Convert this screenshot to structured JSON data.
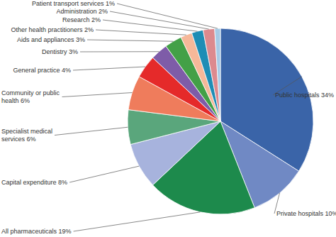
{
  "chart_data": {
    "type": "pie",
    "categories": [
      "Public hospitals",
      "Private hospitals",
      "All pharmaceuticals",
      "Capital expenditure",
      "Specialist medical services",
      "Community or public health",
      "General practice",
      "Dentistry",
      "Aids and appliances",
      "Other health practitioners",
      "Research",
      "Administration",
      "Patient transport services"
    ],
    "values": [
      34,
      10,
      19,
      8,
      6,
      6,
      4,
      3,
      3,
      2,
      2,
      2,
      1
    ],
    "value_labels": [
      "34%",
      "10%",
      "19%",
      "8%",
      "6%",
      "6%",
      "4%",
      "3%",
      "3%",
      "2%",
      "2%",
      "2%",
      "1%"
    ],
    "colors": [
      "#3a64a8",
      "#7089c4",
      "#1d8a4c",
      "#a7b3dd",
      "#5aa67c",
      "#ef7c5c",
      "#e52a2a",
      "#7e5ca8",
      "#43a047",
      "#f6b899",
      "#1e8db5",
      "#dc8a8e",
      "#a6cbe6"
    ],
    "data_labels": true
  }
}
